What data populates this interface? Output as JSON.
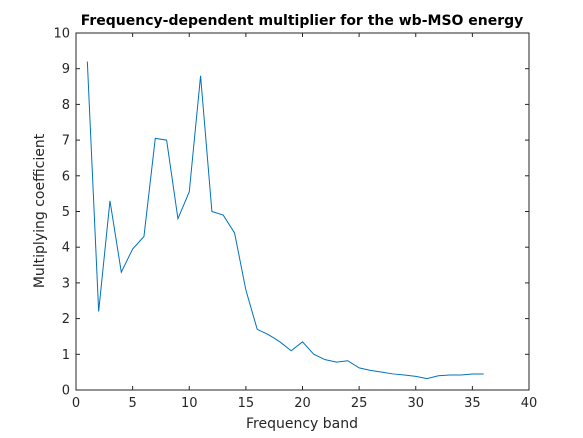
{
  "chart_data": {
    "type": "line",
    "title": "Frequency-dependent multiplier for the wb-MSO energy",
    "xlabel": "Frequency band",
    "ylabel": "Multiplying coefficient",
    "xlim": [
      0,
      40
    ],
    "ylim": [
      0,
      10
    ],
    "xticks": [
      0,
      5,
      10,
      15,
      20,
      25,
      30,
      35,
      40
    ],
    "yticks": [
      0,
      1,
      2,
      3,
      4,
      5,
      6,
      7,
      8,
      9,
      10
    ],
    "grid": false,
    "line_color": "#0072BD",
    "series": [
      {
        "x": [
          1,
          2,
          3,
          4,
          5,
          6,
          7,
          8,
          9,
          10,
          11,
          12,
          13,
          14,
          15,
          16,
          17,
          18,
          19,
          20,
          21,
          22,
          23,
          24,
          25,
          26,
          27,
          28,
          29,
          30,
          31,
          32,
          33,
          34,
          35,
          36
        ],
        "values": [
          9.2,
          2.2,
          5.3,
          3.3,
          3.95,
          4.3,
          7.05,
          7.0,
          4.8,
          5.55,
          8.8,
          5.0,
          4.9,
          4.4,
          2.8,
          1.7,
          1.55,
          1.35,
          1.1,
          1.35,
          1.0,
          0.85,
          0.78,
          0.82,
          0.62,
          0.55,
          0.5,
          0.45,
          0.42,
          0.38,
          0.32,
          0.4,
          0.42,
          0.42,
          0.45,
          0.45
        ]
      }
    ]
  }
}
